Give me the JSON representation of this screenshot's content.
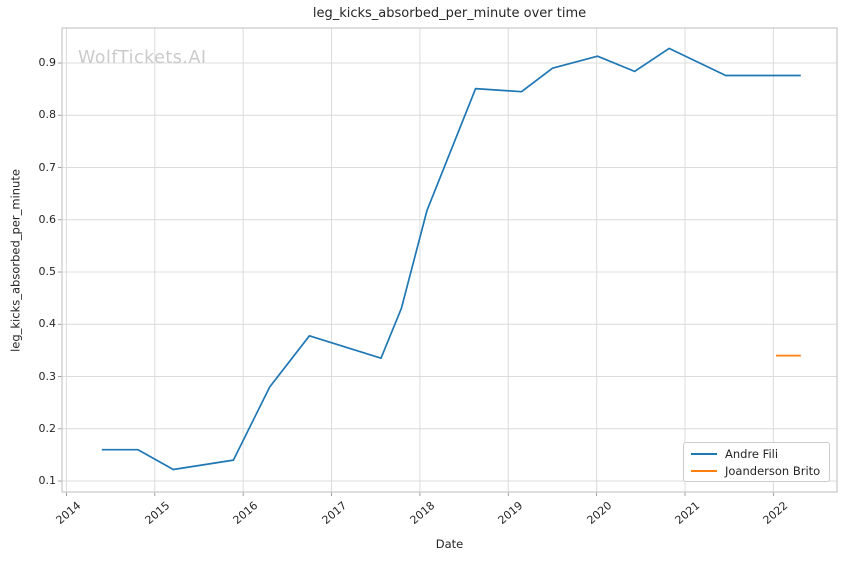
{
  "watermark": {
    "text": "WolfTickets.AI",
    "color": "#cbcbcb"
  },
  "colors": {
    "series_blue": "#1f77b4",
    "series_orange": "#ff7f0e",
    "grid": "#dcdcdc",
    "axes_border": "#c9c9c9",
    "tick_mark": "#8a8a8a",
    "text": "#262626"
  },
  "chart_data": {
    "type": "line",
    "title": "leg_kicks_absorbed_per_minute over time",
    "xlabel": "Date",
    "ylabel": "leg_kicks_absorbed_per_minute",
    "x_ticks": [
      2014,
      2015,
      2016,
      2017,
      2018,
      2019,
      2020,
      2021,
      2022
    ],
    "y_ticks": [
      0.1,
      0.2,
      0.3,
      0.4,
      0.5,
      0.6,
      0.7,
      0.8,
      0.9
    ],
    "xlim": [
      2013.95,
      2022.72
    ],
    "ylim": [
      0.079,
      0.967
    ],
    "grid": true,
    "legend_position": "lower right",
    "series": [
      {
        "name": "Andre Fili",
        "color": "#1f77b4",
        "x": [
          2014.4,
          2014.81,
          2015.21,
          2015.89,
          2016.3,
          2016.75,
          2017.56,
          2017.79,
          2018.08,
          2018.63,
          2019.15,
          2019.5,
          2020.01,
          2020.43,
          2020.82,
          2021.46,
          2022.31
        ],
        "y": [
          0.16,
          0.16,
          0.122,
          0.14,
          0.28,
          0.378,
          0.335,
          0.43,
          0.618,
          0.851,
          0.845,
          0.89,
          0.913,
          0.884,
          0.928,
          0.876,
          0.876
        ]
      },
      {
        "name": "Joanderson Brito",
        "color": "#ff7f0e",
        "x": [
          2022.03,
          2022.31
        ],
        "y": [
          0.34,
          0.34
        ]
      }
    ]
  }
}
